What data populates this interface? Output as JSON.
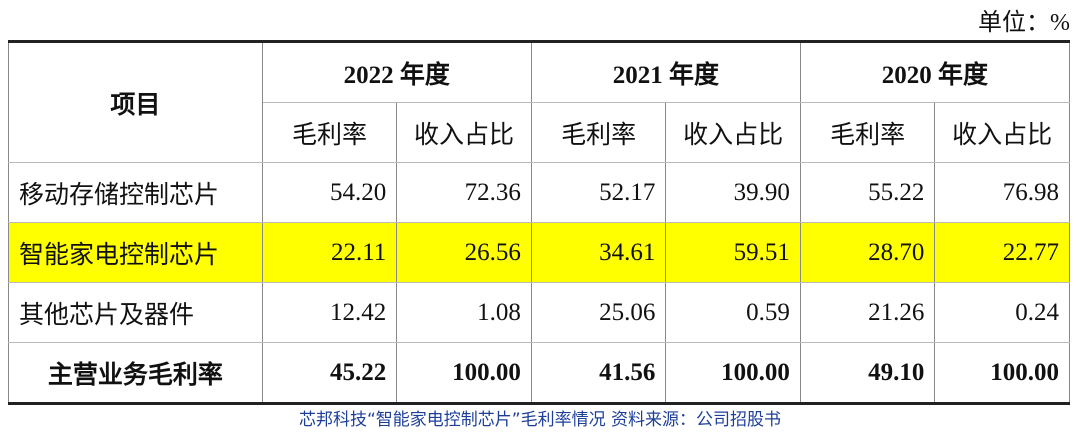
{
  "unit": "单位：%",
  "table": {
    "header": {
      "item": "项目",
      "years": [
        "2022 年度",
        "2021 年度",
        "2020 年度"
      ],
      "subcols": [
        "毛利率",
        "收入占比",
        "毛利率",
        "收入占比",
        "毛利率",
        "收入占比"
      ]
    },
    "rows": [
      {
        "label": "移动存储控制芯片",
        "values": [
          "54.20",
          "72.36",
          "52.17",
          "39.90",
          "55.22",
          "76.98"
        ]
      },
      {
        "label": "智能家电控制芯片",
        "values": [
          "22.11",
          "26.56",
          "34.61",
          "59.51",
          "28.70",
          "22.77"
        ]
      },
      {
        "label": "其他芯片及器件",
        "values": [
          "12.42",
          "1.08",
          "25.06",
          "0.59",
          "21.26",
          "0.24"
        ]
      },
      {
        "label": "主营业务毛利率",
        "values": [
          "45.22",
          "100.00",
          "41.56",
          "100.00",
          "49.10",
          "100.00"
        ]
      }
    ]
  },
  "caption": "芯邦科技“智能家电控制芯片”毛利率情况 资料来源：公司招股书"
}
